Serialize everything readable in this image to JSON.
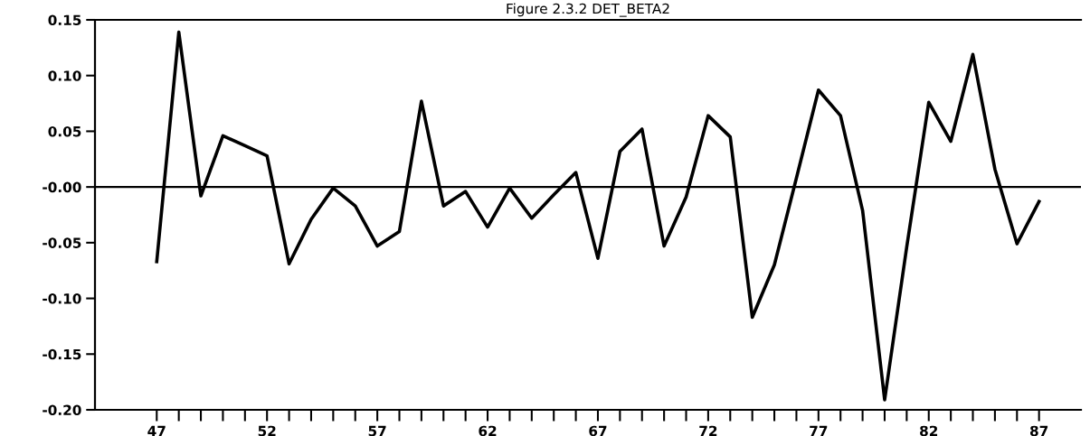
{
  "chart_data": {
    "type": "line",
    "title": "Figure 2.3.2 DET_BETA2",
    "x": [
      47,
      48,
      49,
      50,
      51,
      52,
      53,
      54,
      55,
      56,
      57,
      58,
      59,
      60,
      61,
      62,
      63,
      64,
      65,
      66,
      67,
      68,
      69,
      70,
      71,
      72,
      73,
      74,
      75,
      76,
      77,
      78,
      79,
      80,
      81,
      82,
      83,
      84,
      85,
      86,
      87
    ],
    "series": [
      {
        "color": "#000000",
        "values": [
          -0.067,
          0.139,
          -0.008,
          0.046,
          0.037,
          0.028,
          -0.069,
          -0.029,
          -0.001,
          -0.017,
          -0.053,
          -0.04,
          0.077,
          -0.017,
          -0.004,
          -0.036,
          -0.001,
          -0.028,
          -0.007,
          0.013,
          -0.064,
          0.032,
          0.052,
          -0.053,
          -0.009,
          0.064,
          0.045,
          -0.117,
          -0.07,
          0.008,
          0.087,
          0.064,
          -0.021,
          -0.191,
          -0.054,
          0.076,
          0.041,
          0.119,
          0.016,
          -0.051,
          -0.013
        ]
      }
    ],
    "xlim": [
      44.2,
      88.9
    ],
    "ylim": [
      -0.2,
      0.15
    ],
    "xticks": [
      47,
      {
        "value": 48,
        "label": null
      },
      {
        "value": 49,
        "label": null
      },
      {
        "value": 50,
        "label": null
      },
      {
        "value": 51,
        "label": null
      },
      52,
      {
        "value": 53,
        "label": null
      },
      {
        "value": 54,
        "label": null
      },
      {
        "value": 55,
        "label": null
      },
      {
        "value": 56,
        "label": null
      },
      57,
      {
        "value": 58,
        "label": null
      },
      {
        "value": 59,
        "label": null
      },
      {
        "value": 60,
        "label": null
      },
      {
        "value": 61,
        "label": null
      },
      62,
      {
        "value": 63,
        "label": null
      },
      {
        "value": 64,
        "label": null
      },
      {
        "value": 65,
        "label": null
      },
      {
        "value": 66,
        "label": null
      },
      67,
      {
        "value": 68,
        "label": null
      },
      {
        "value": 69,
        "label": null
      },
      {
        "value": 70,
        "label": null
      },
      {
        "value": 71,
        "label": null
      },
      72,
      {
        "value": 73,
        "label": null
      },
      {
        "value": 74,
        "label": null
      },
      {
        "value": 75,
        "label": null
      },
      {
        "value": 76,
        "label": null
      },
      77,
      {
        "value": 78,
        "label": null
      },
      {
        "value": 79,
        "label": null
      },
      {
        "value": 80,
        "label": null
      },
      {
        "value": 81,
        "label": null
      },
      82,
      {
        "value": 83,
        "label": null
      },
      {
        "value": 84,
        "label": null
      },
      {
        "value": 85,
        "label": null
      },
      {
        "value": 86,
        "label": null
      },
      87
    ],
    "yticks": [
      {
        "value": 0.15,
        "label": "0.15"
      },
      {
        "value": 0.1,
        "label": "0.10"
      },
      {
        "value": 0.05,
        "label": "0.05"
      },
      {
        "value": 0,
        "label": "-0.00"
      },
      {
        "value": -0.05,
        "label": "-0.05"
      },
      {
        "value": -0.1,
        "label": "-0.10"
      },
      {
        "value": -0.15,
        "label": "-0.15"
      },
      {
        "value": -0.2,
        "label": "-0.20"
      }
    ],
    "ref_lines": [
      {
        "axis": "y",
        "value": 0,
        "color": "#000000"
      }
    ],
    "grid": false,
    "legend": false,
    "marker": "none",
    "line_style": "solid"
  }
}
